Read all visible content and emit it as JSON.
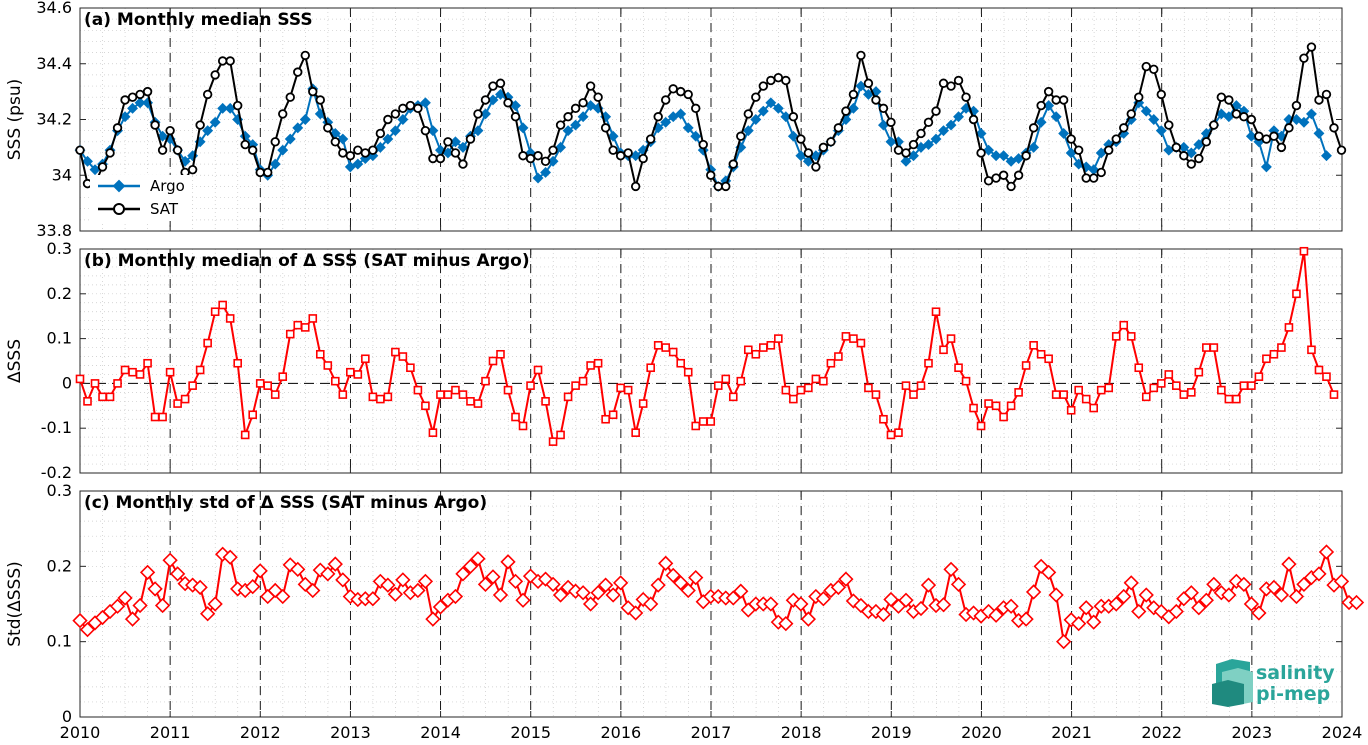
{
  "chart_data": [
    {
      "type": "line",
      "title": "(a) Monthly median SSS",
      "ylabel": "SSS (psu)",
      "xlim": [
        2010,
        2024
      ],
      "ylim": [
        33.8,
        34.6
      ],
      "xticks": [
        "2010",
        "2011",
        "2012",
        "2013",
        "2014",
        "2015",
        "2016",
        "2017",
        "2018",
        "2019",
        "2020",
        "2021",
        "2022",
        "2023",
        "2024"
      ],
      "yticks": [
        "33.8",
        "34",
        "34.2",
        "34.4",
        "34.6"
      ],
      "grid": "minor dotted",
      "legend": "bottom-left",
      "x_start": 2010.0,
      "x_step": 0.0833,
      "series": [
        {
          "name": "Argo",
          "color": "#0072bd",
          "marker": "diamond",
          "values": [
            34.09,
            34.05,
            34.02,
            34.04,
            34.09,
            34.16,
            34.21,
            34.24,
            34.26,
            34.26,
            34.19,
            34.14,
            34.13,
            34.09,
            34.05,
            34.07,
            34.12,
            34.16,
            34.19,
            34.24,
            34.24,
            34.2,
            34.14,
            34.11,
            34.02,
            34.0,
            34.04,
            34.09,
            34.13,
            34.17,
            34.2,
            34.31,
            34.22,
            34.19,
            34.15,
            34.13,
            34.03,
            34.04,
            34.06,
            34.07,
            34.1,
            34.13,
            34.16,
            34.2,
            34.24,
            34.25,
            34.26,
            34.16,
            34.09,
            34.08,
            34.12,
            34.1,
            34.14,
            34.16,
            34.22,
            34.27,
            34.29,
            34.28,
            34.25,
            34.17,
            34.08,
            33.99,
            34.01,
            34.05,
            34.1,
            34.16,
            34.18,
            34.21,
            34.25,
            34.24,
            34.21,
            34.14,
            34.08,
            34.07,
            34.07,
            34.09,
            34.12,
            34.17,
            34.19,
            34.21,
            34.22,
            34.17,
            34.14,
            34.09,
            34.02,
            33.96,
            33.98,
            34.03,
            34.1,
            34.16,
            34.2,
            34.23,
            34.26,
            34.24,
            34.21,
            34.14,
            34.07,
            34.05,
            34.07,
            34.09,
            34.12,
            34.16,
            34.2,
            34.24,
            34.32,
            34.29,
            34.3,
            34.18,
            34.12,
            34.12,
            34.05,
            34.07,
            34.1,
            34.11,
            34.13,
            34.16,
            34.18,
            34.21,
            34.24,
            34.23,
            34.15,
            34.09,
            34.07,
            34.07,
            34.05,
            34.06,
            34.08,
            34.1,
            34.19,
            34.25,
            34.21,
            34.15,
            34.08,
            34.04,
            34.03,
            34.02,
            34.08,
            34.11,
            34.12,
            34.15,
            34.2,
            34.26,
            34.23,
            34.2,
            34.16,
            34.09,
            34.1,
            34.1,
            34.08,
            34.11,
            34.15,
            34.18,
            34.22,
            34.21,
            34.25,
            34.23,
            34.14,
            34.12,
            34.03,
            34.16,
            34.14,
            34.2,
            34.2,
            34.19,
            34.22,
            34.15,
            34.07
          ]
        },
        {
          "name": "SAT",
          "color": "#000000",
          "marker": "circle",
          "values": [
            34.09,
            33.97,
            33.97,
            34.03,
            34.08,
            34.17,
            34.27,
            34.28,
            34.29,
            34.3,
            34.18,
            34.09,
            34.16,
            34.09,
            34.01,
            34.02,
            34.18,
            34.29,
            34.36,
            34.41,
            34.41,
            34.25,
            34.11,
            34.09,
            34.01,
            34.01,
            34.12,
            34.22,
            34.28,
            34.37,
            34.43,
            34.3,
            34.27,
            34.17,
            34.12,
            34.08,
            34.07,
            34.09,
            34.08,
            34.09,
            34.15,
            34.2,
            34.22,
            34.24,
            34.25,
            34.24,
            34.16,
            34.06,
            34.06,
            34.12,
            34.08,
            34.04,
            34.13,
            34.22,
            34.27,
            34.32,
            34.33,
            34.26,
            34.21,
            34.07,
            34.06,
            34.07,
            34.05,
            34.09,
            34.18,
            34.21,
            34.24,
            34.26,
            34.32,
            34.28,
            34.17,
            34.09,
            34.07,
            34.08,
            33.96,
            34.06,
            34.13,
            34.21,
            34.27,
            34.31,
            34.3,
            34.29,
            34.24,
            34.11,
            34.0,
            33.96,
            33.96,
            34.04,
            34.14,
            34.22,
            34.28,
            34.32,
            34.34,
            34.35,
            34.34,
            34.21,
            34.13,
            34.08,
            34.03,
            34.1,
            34.12,
            34.17,
            34.23,
            34.29,
            34.43,
            34.33,
            34.27,
            34.24,
            34.19,
            34.09,
            34.08,
            34.11,
            34.15,
            34.19,
            34.23,
            34.33,
            34.32,
            34.34,
            34.28,
            34.2,
            34.08,
            33.98,
            33.99,
            34.0,
            33.96,
            34.0,
            34.07,
            34.17,
            34.25,
            34.3,
            34.27,
            34.27,
            34.13,
            34.09,
            33.99,
            33.99,
            34.01,
            34.09,
            34.13,
            34.17,
            34.22,
            34.28,
            34.39,
            34.38,
            34.29,
            34.18,
            34.1,
            34.07,
            34.04,
            34.06,
            34.12,
            34.18,
            34.28,
            34.27,
            34.22,
            34.21,
            34.2,
            34.14,
            34.13,
            34.14,
            34.1,
            34.17,
            34.25,
            34.42,
            34.46,
            34.27,
            34.29,
            34.17,
            34.09
          ]
        }
      ]
    },
    {
      "type": "line",
      "title": "(b) Monthly median of Δ SSS (SAT minus Argo)",
      "ylabel": "ΔSSS",
      "xlim": [
        2010,
        2024
      ],
      "ylim": [
        -0.2,
        0.3
      ],
      "xticks": [
        "2010",
        "2011",
        "2012",
        "2013",
        "2014",
        "2015",
        "2016",
        "2017",
        "2018",
        "2019",
        "2020",
        "2021",
        "2022",
        "2023",
        "2024"
      ],
      "yticks": [
        "-0.2",
        "-0.1",
        "0",
        "0.1",
        "0.2",
        "0.3"
      ],
      "grid": "minor dotted",
      "reference_line": 0,
      "x_start": 2010.0,
      "x_step": 0.0833,
      "series": [
        {
          "name": "",
          "color": "#ff0000",
          "marker": "square",
          "values": [
            0.01,
            -0.04,
            0.0,
            -0.03,
            -0.03,
            0.0,
            0.03,
            0.025,
            0.02,
            0.045,
            -0.075,
            -0.075,
            0.025,
            -0.045,
            -0.035,
            -0.005,
            0.03,
            0.09,
            0.16,
            0.175,
            0.145,
            0.045,
            -0.115,
            -0.07,
            0.0,
            -0.005,
            -0.025,
            0.015,
            0.11,
            0.13,
            0.125,
            0.145,
            0.065,
            0.04,
            0.005,
            -0.025,
            0.025,
            0.02,
            0.055,
            -0.03,
            -0.035,
            -0.03,
            0.07,
            0.06,
            0.035,
            -0.015,
            -0.05,
            -0.11,
            -0.025,
            -0.025,
            -0.015,
            -0.025,
            -0.04,
            -0.045,
            0.005,
            0.05,
            0.065,
            -0.015,
            -0.075,
            -0.095,
            -0.005,
            0.03,
            -0.04,
            -0.13,
            -0.115,
            -0.03,
            -0.005,
            0.005,
            0.04,
            0.045,
            -0.08,
            -0.07,
            -0.01,
            -0.015,
            -0.11,
            -0.045,
            0.035,
            0.085,
            0.08,
            0.07,
            0.045,
            0.025,
            -0.095,
            -0.085,
            -0.085,
            -0.005,
            0.01,
            -0.03,
            0.005,
            0.075,
            0.065,
            0.08,
            0.085,
            0.1,
            -0.015,
            -0.035,
            -0.015,
            -0.01,
            0.01,
            0.005,
            0.045,
            0.06,
            0.105,
            0.1,
            0.09,
            -0.01,
            -0.025,
            -0.08,
            -0.115,
            -0.11,
            -0.005,
            -0.025,
            -0.005,
            0.045,
            0.16,
            0.075,
            0.1,
            0.035,
            0.005,
            -0.055,
            -0.095,
            -0.045,
            -0.05,
            -0.075,
            -0.05,
            -0.02,
            0.04,
            0.085,
            0.065,
            0.055,
            -0.025,
            -0.025,
            -0.06,
            -0.015,
            -0.035,
            -0.055,
            -0.015,
            -0.01,
            0.105,
            0.13,
            0.105,
            0.035,
            -0.03,
            -0.01,
            0.0,
            0.02,
            -0.005,
            -0.025,
            -0.02,
            0.025,
            0.08,
            0.08,
            -0.015,
            -0.035,
            -0.035,
            -0.005,
            -0.005,
            0.015,
            0.055,
            0.065,
            0.08,
            0.125,
            0.2,
            0.295,
            0.075,
            0.03,
            0.015,
            -0.025
          ]
        }
      ]
    },
    {
      "type": "line",
      "title": "(c) Monthly std of Δ SSS (SAT minus Argo)",
      "ylabel": "Std(ΔSSS)",
      "xlim": [
        2010,
        2024
      ],
      "ylim": [
        0,
        0.3
      ],
      "xticks": [
        "2010",
        "2011",
        "2012",
        "2013",
        "2014",
        "2015",
        "2016",
        "2017",
        "2018",
        "2019",
        "2020",
        "2021",
        "2022",
        "2023",
        "2024"
      ],
      "yticks": [
        "0",
        "0.1",
        "0.2",
        "0.3"
      ],
      "grid": "minor dotted",
      "x_start": 2010.0,
      "x_step": 0.0833,
      "series": [
        {
          "name": "",
          "color": "#ff0000",
          "marker": "diamond",
          "values": [
            0.128,
            0.116,
            0.125,
            0.132,
            0.14,
            0.147,
            0.158,
            0.13,
            0.148,
            0.192,
            0.17,
            0.148,
            0.208,
            0.19,
            0.177,
            0.175,
            0.172,
            0.137,
            0.15,
            0.216,
            0.212,
            0.17,
            0.168,
            0.173,
            0.194,
            0.16,
            0.168,
            0.16,
            0.202,
            0.196,
            0.176,
            0.168,
            0.195,
            0.19,
            0.203,
            0.182,
            0.16,
            0.156,
            0.157,
            0.157,
            0.18,
            0.175,
            0.163,
            0.182,
            0.165,
            0.168,
            0.18,
            0.13,
            0.146,
            0.155,
            0.16,
            0.19,
            0.2,
            0.21,
            0.176,
            0.186,
            0.162,
            0.206,
            0.18,
            0.155,
            0.187,
            0.18,
            0.183,
            0.176,
            0.162,
            0.172,
            0.167,
            0.165,
            0.15,
            0.165,
            0.175,
            0.162,
            0.178,
            0.145,
            0.138,
            0.156,
            0.15,
            0.175,
            0.204,
            0.188,
            0.178,
            0.168,
            0.185,
            0.153,
            0.16,
            0.16,
            0.158,
            0.158,
            0.167,
            0.142,
            0.15,
            0.15,
            0.15,
            0.126,
            0.124,
            0.155,
            0.15,
            0.13,
            0.16,
            0.157,
            0.168,
            0.172,
            0.183,
            0.154,
            0.148,
            0.14,
            0.14,
            0.136,
            0.156,
            0.147,
            0.155,
            0.14,
            0.144,
            0.175,
            0.148,
            0.149,
            0.196,
            0.176,
            0.136,
            0.138,
            0.134,
            0.14,
            0.135,
            0.145,
            0.147,
            0.128,
            0.13,
            0.166,
            0.2,
            0.192,
            0.162,
            0.1,
            0.129,
            0.124,
            0.145,
            0.126,
            0.147,
            0.147,
            0.15,
            0.16,
            0.178,
            0.14,
            0.162,
            0.145,
            0.14,
            0.133,
            0.14,
            0.157,
            0.165,
            0.145,
            0.155,
            0.176,
            0.165,
            0.162,
            0.18,
            0.176,
            0.15,
            0.138,
            0.17,
            0.172,
            0.162,
            0.203,
            0.16,
            0.176,
            0.185,
            0.19,
            0.219,
            0.175,
            0.18,
            0.152,
            0.152
          ]
        }
      ]
    }
  ],
  "legend": {
    "argo_label": "Argo",
    "sat_label": "SAT"
  },
  "logo": {
    "line1": "salinity",
    "line2": "pi-mep",
    "color": "#2aa59a"
  }
}
